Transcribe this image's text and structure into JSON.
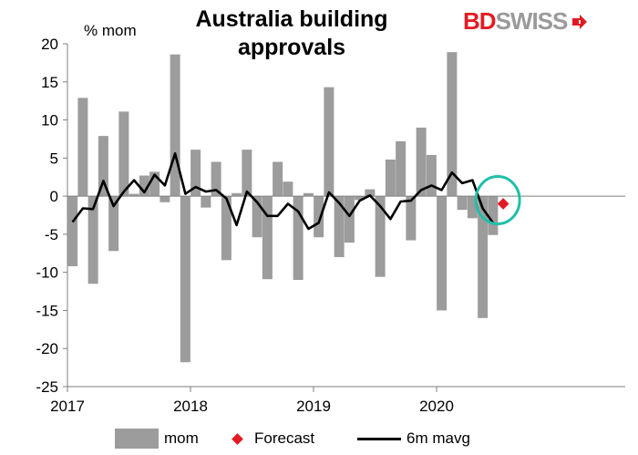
{
  "chart_data": {
    "type": "bar",
    "title": "Australia building approvals",
    "ylabel": "% mom",
    "ylim": [
      -25,
      20
    ],
    "yticks": [
      -25,
      -20,
      -15,
      -10,
      -5,
      0,
      5,
      10,
      15,
      20
    ],
    "xticks": [
      "2017",
      "2018",
      "2019",
      "2020"
    ],
    "months": [
      "2017-01",
      "2017-02",
      "2017-03",
      "2017-04",
      "2017-05",
      "2017-06",
      "2017-07",
      "2017-08",
      "2017-09",
      "2017-10",
      "2017-11",
      "2017-12",
      "2018-01",
      "2018-02",
      "2018-03",
      "2018-04",
      "2018-05",
      "2018-06",
      "2018-07",
      "2018-08",
      "2018-09",
      "2018-10",
      "2018-11",
      "2018-12",
      "2019-01",
      "2019-02",
      "2019-03",
      "2019-04",
      "2019-05",
      "2019-06",
      "2019-07",
      "2019-08",
      "2019-09",
      "2019-10",
      "2019-11",
      "2019-12",
      "2020-01",
      "2020-02",
      "2020-03",
      "2020-04",
      "2020-05",
      "2020-06"
    ],
    "series": [
      {
        "name": "mom",
        "kind": "bar",
        "color": "#9c9c9c",
        "values": [
          -9.2,
          12.9,
          -11.5,
          7.9,
          -7.2,
          11.1,
          0.3,
          2.7,
          3.2,
          -0.8,
          18.6,
          -21.8,
          6.1,
          -1.5,
          4.5,
          -8.4,
          0.4,
          6.1,
          -5.4,
          -10.9,
          4.5,
          1.9,
          -11.0,
          0.4,
          -5.4,
          14.3,
          -8.0,
          -6.1,
          -0.5,
          0.9,
          -10.6,
          4.8,
          7.2,
          -5.8,
          9.0,
          5.4,
          -15.0,
          18.9,
          -1.8,
          -2.9,
          -16.0,
          -5.1
        ]
      },
      {
        "name": "6m mavg",
        "kind": "line",
        "color": "#000000",
        "values": [
          -3.4,
          -1.6,
          -1.7,
          2.0,
          -1.3,
          0.6,
          2.1,
          0.5,
          2.8,
          1.4,
          5.6,
          0.3,
          1.2,
          0.6,
          0.8,
          -0.3,
          -3.8,
          0.6,
          -0.8,
          -2.6,
          -2.6,
          -1.0,
          -2.0,
          -4.3,
          -3.5,
          0.5,
          -0.9,
          -2.6,
          -0.6,
          0.1,
          -1.3,
          -3.0,
          -0.7,
          -0.6,
          0.8,
          1.4,
          0.8,
          3.1,
          1.7,
          2.1,
          -1.6,
          -3.5
        ]
      },
      {
        "name": "Forecast",
        "kind": "point",
        "color": "#e21b23",
        "month": "2020-07",
        "value": -1.0
      }
    ],
    "legend_position": "bottom",
    "grid": false,
    "annotation": {
      "shape": "ellipse",
      "color": "#1fbfa9",
      "around": "Forecast"
    }
  },
  "logo": {
    "part1": "BD",
    "part2": "SWISS"
  },
  "colors": {
    "bar": "#9c9c9c",
    "line": "#000000",
    "forecast": "#e21b23",
    "ellipse": "#1fbfa9",
    "brand_red": "#e21b23"
  }
}
